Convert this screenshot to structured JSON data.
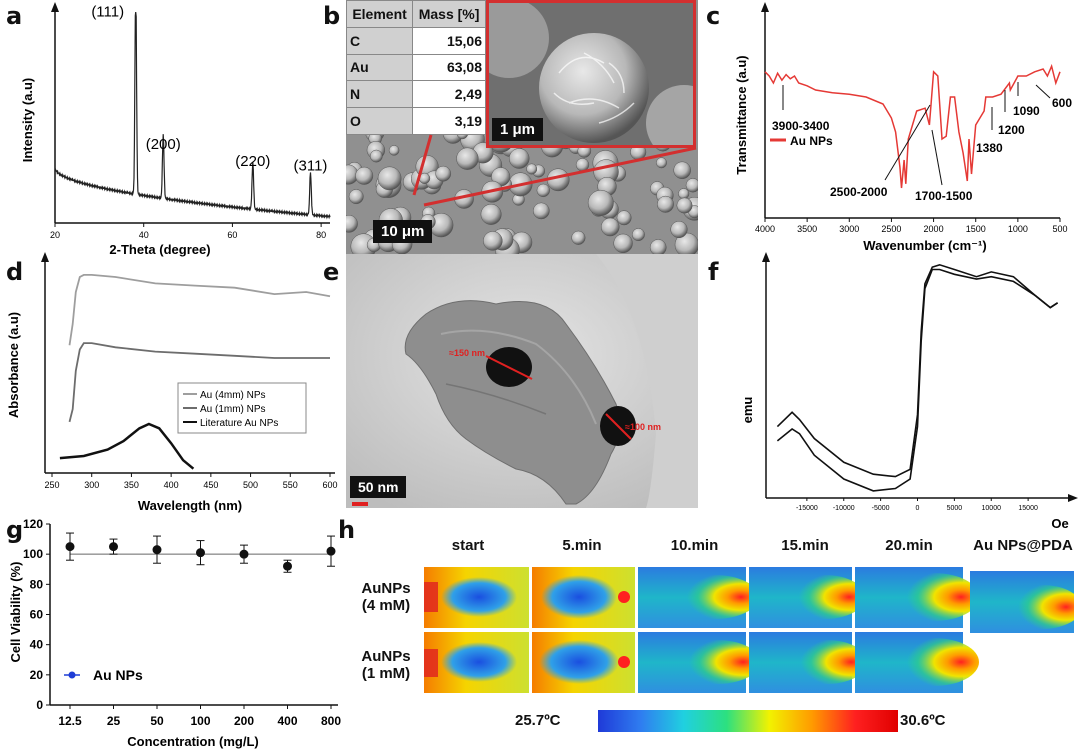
{
  "panel_labels": [
    "a",
    "b",
    "c",
    "d",
    "e",
    "f",
    "g",
    "h"
  ],
  "colors": {
    "ftir": "#e53935",
    "cell_series": "#1e3dd6",
    "tem_annot": "#e02020",
    "sem_frame": "#d32f2f"
  },
  "chart_data": [
    {
      "id": "a",
      "type": "line",
      "title": "",
      "xlabel": "2-Theta (degree)",
      "ylabel": "Intensity (a.u)",
      "xlim": [
        20,
        82
      ],
      "ylim": [
        0,
        100
      ],
      "xticks": [
        "20",
        "40",
        "60",
        "80"
      ],
      "peaks": [
        {
          "x": 38.2,
          "height": 98,
          "label": "(111)"
        },
        {
          "x": 44.4,
          "height": 30,
          "label": "(200)"
        },
        {
          "x": 64.6,
          "height": 22,
          "label": "(220)"
        },
        {
          "x": 77.6,
          "height": 20,
          "label": "(311)"
        }
      ],
      "baseline_start": 26,
      "baseline_end": 3
    },
    {
      "id": "c",
      "type": "line",
      "xlabel": "Wavenumber (cm⁻¹)",
      "ylabel": "Transmittance (a.u)",
      "xlim": [
        4000,
        500
      ],
      "ylim": [
        0,
        100
      ],
      "x_reversed": true,
      "xticks": [
        "4000",
        "3500",
        "3000",
        "2500",
        "2000",
        "1500",
        "1000",
        "500"
      ],
      "legend": "Au NPs",
      "series": [
        {
          "name": "Au NPs",
          "x": [
            4000,
            3950,
            3900,
            3850,
            3800,
            3750,
            3700,
            3650,
            3600,
            3500,
            3400,
            3200,
            3000,
            2800,
            2600,
            2500,
            2450,
            2400,
            2380,
            2350,
            2330,
            2300,
            2200,
            2100,
            2050,
            2000,
            1950,
            1900,
            1850,
            1800,
            1750,
            1700,
            1650,
            1600,
            1580,
            1550,
            1500,
            1450,
            1400,
            1380,
            1300,
            1200,
            1100,
            1090,
            1000,
            900,
            800,
            700,
            650,
            600,
            550,
            500
          ],
          "values": [
            88,
            85,
            80,
            87,
            82,
            86,
            83,
            85,
            80,
            78,
            75,
            73,
            72,
            70,
            65,
            55,
            45,
            20,
            5,
            25,
            8,
            40,
            60,
            62,
            50,
            88,
            85,
            40,
            42,
            70,
            70,
            45,
            30,
            10,
            40,
            15,
            50,
            55,
            60,
            70,
            70,
            72,
            80,
            75,
            85,
            85,
            88,
            90,
            85,
            92,
            80,
            88
          ]
        }
      ],
      "annotations": [
        "3900-3400",
        "2500-2000",
        "1700-1500",
        "1380",
        "1200",
        "1090",
        "600"
      ]
    },
    {
      "id": "d",
      "type": "line",
      "xlabel": "Wavelength (nm)",
      "ylabel": "Absorbance (a.u)",
      "xlim": [
        250,
        600
      ],
      "xticks": [
        "250",
        "300",
        "350",
        "400",
        "450",
        "500",
        "550",
        "600"
      ],
      "series": [
        {
          "name": "Au (4mm) NPs",
          "color": "#9e9e9e",
          "x": [
            272,
            276,
            280,
            285,
            290,
            300,
            330,
            380,
            430,
            480,
            530,
            570,
            600
          ],
          "values": [
            60,
            70,
            85,
            92,
            93,
            93,
            92,
            89,
            88,
            87,
            84,
            85,
            83
          ]
        },
        {
          "name": "Au (1mm) NPs",
          "color": "#6d6d6d",
          "x": [
            272,
            276,
            280,
            285,
            290,
            300,
            330,
            380,
            430,
            480,
            530,
            570,
            600
          ],
          "values": [
            24,
            30,
            48,
            58,
            61,
            61,
            59,
            57,
            56,
            55,
            54,
            54,
            54
          ]
        },
        {
          "name": "Literature Au NPs",
          "color": "#111111",
          "x": [
            260,
            290,
            320,
            340,
            360,
            372,
            385,
            400,
            415,
            428
          ],
          "values": [
            7,
            8,
            11,
            15,
            21,
            23,
            21,
            14,
            6,
            2
          ]
        }
      ]
    },
    {
      "id": "f",
      "type": "line",
      "xlabel": "Oe",
      "ylabel": "emu",
      "xlim": [
        -20000,
        20000
      ],
      "xticks": [
        "-15000",
        "-10000",
        "-5000",
        "0",
        "5000",
        "10000",
        "15000"
      ],
      "series": [
        {
          "name": "upper",
          "x": [
            -19000,
            -17000,
            -16000,
            -14000,
            -10000,
            -6000,
            -3000,
            -1000,
            0,
            500,
            1000,
            2000,
            3000,
            5000,
            8000,
            10000,
            13000,
            16000,
            18000,
            19000
          ],
          "values": [
            30,
            36,
            33,
            25,
            15,
            10,
            9,
            12,
            35,
            70,
            90,
            97,
            98,
            96,
            93,
            95,
            93,
            85,
            80,
            82
          ]
        },
        {
          "name": "lower",
          "x": [
            -19000,
            -17000,
            -16000,
            -14000,
            -10000,
            -6000,
            -3000,
            -1000,
            0,
            500,
            1000,
            2000,
            3000,
            5000,
            8000,
            10000,
            13000,
            16000,
            18000,
            19000
          ],
          "values": [
            24,
            29,
            27,
            18,
            8,
            3,
            4,
            8,
            30,
            66,
            88,
            96,
            96,
            94,
            92,
            93,
            91,
            85,
            80,
            82
          ]
        }
      ]
    },
    {
      "id": "g",
      "type": "scatter",
      "xlabel": "Concentration (mg/L)",
      "ylabel": "Cell Viability (%)",
      "categories": [
        "12.5",
        "25",
        "50",
        "100",
        "200",
        "400",
        "800"
      ],
      "values": [
        105,
        105,
        103,
        101,
        100,
        92,
        102
      ],
      "errors": [
        9,
        5,
        9,
        8,
        6,
        4,
        10
      ],
      "ylim": [
        0,
        120
      ],
      "yticks": [
        "0",
        "20",
        "40",
        "60",
        "80",
        "100",
        "120"
      ],
      "reference_line": 100,
      "legend": "Au NPs"
    }
  ],
  "sem": {
    "table_headers": [
      "Element",
      "Mass [%]"
    ],
    "rows": [
      {
        "el": "C",
        "val": "15,06"
      },
      {
        "el": "Au",
        "val": "63,08"
      },
      {
        "el": "N",
        "val": "2,49"
      },
      {
        "el": "O",
        "val": "3,19"
      }
    ],
    "scale_main": "10 μm",
    "scale_inset": "1 μm"
  },
  "tem": {
    "scale": "50 nm",
    "d1": "≈150 nm",
    "d2": "≈100 nm"
  },
  "thermal": {
    "columns": [
      "start",
      "5.min",
      "10.min",
      "15.min",
      "20.min",
      "Au NPs@PDA"
    ],
    "rows": [
      "AuNPs\n(4 mM)",
      "AuNPs\n(1 mM)"
    ],
    "row_line1": [
      "AuNPs",
      "AuNPs"
    ],
    "row_line2": [
      "(4 mM)",
      "(1 mM)"
    ],
    "scale_min": "25.7ºC",
    "scale_max": "30.6ºC"
  }
}
